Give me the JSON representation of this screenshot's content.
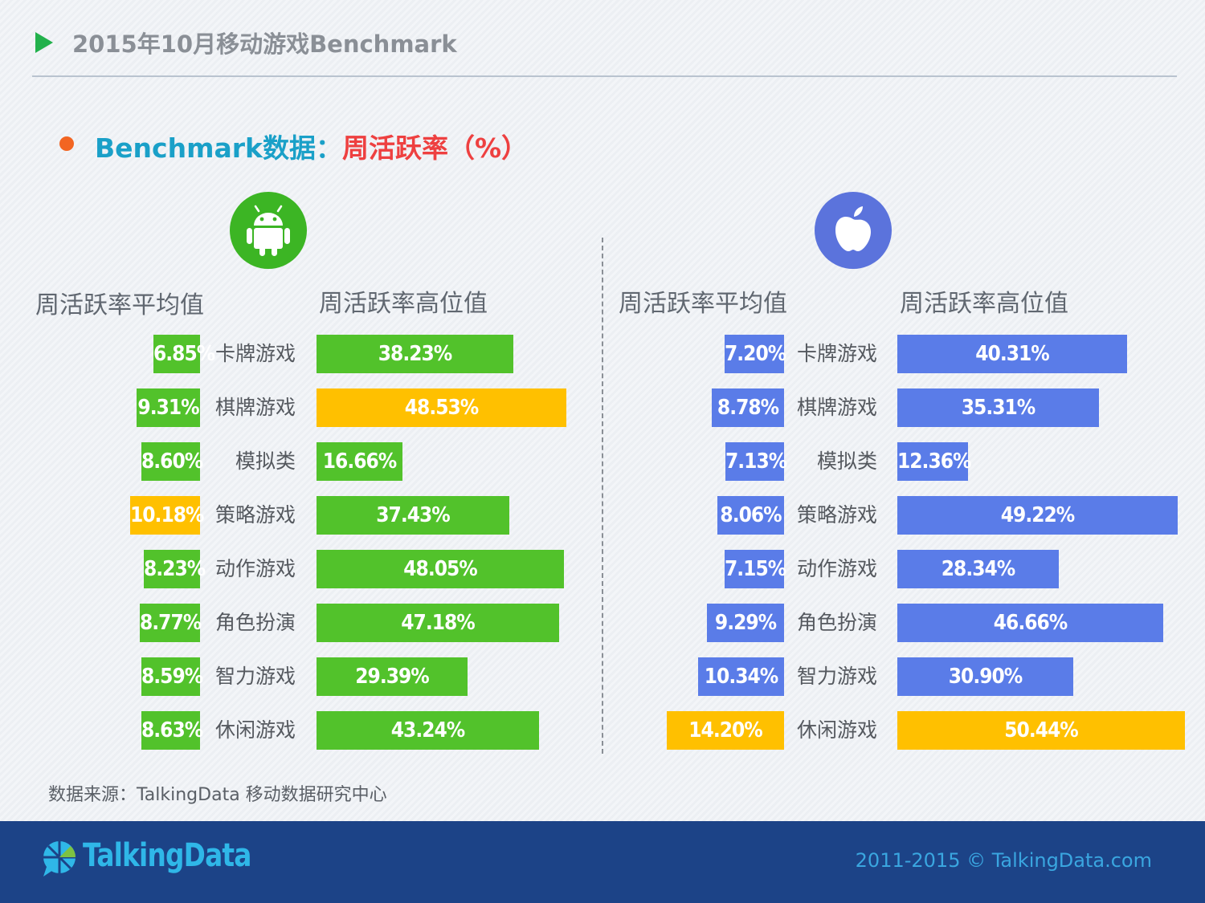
{
  "header": {
    "title": "2015年10月移动游戏Benchmark"
  },
  "subtitle": {
    "part_a": "Benchmark数据：",
    "part_b": "周活跃率（%）"
  },
  "colors": {
    "green": "#52c22b",
    "yellow": "#ffc000",
    "blue": "#5a7ce8",
    "footer": "#1c4387"
  },
  "icons": {
    "android": "android-icon",
    "apple": "apple-icon"
  },
  "chart_data": [
    {
      "type": "bar",
      "platform": "android",
      "categories": [
        "卡牌游戏",
        "棋牌游戏",
        "模拟类",
        "策略游戏",
        "动作游戏",
        "角色扮演",
        "智力游戏",
        "休闲游戏"
      ],
      "series": [
        {
          "name": "周活跃率平均值",
          "labels": [
            "6.85%",
            "9.31%",
            "8.60%",
            "10.18%",
            "8.23%",
            "8.77%",
            "8.59%",
            "8.63%"
          ],
          "values": [
            6.85,
            9.31,
            8.6,
            10.18,
            8.23,
            8.77,
            8.59,
            8.63
          ],
          "highlight_index": 3
        },
        {
          "name": "周活跃率高位值",
          "labels": [
            "38.23%",
            "48.53%",
            "16.66%",
            "37.43%",
            "48.05%",
            "47.18%",
            "29.39%",
            "43.24%"
          ],
          "values": [
            38.23,
            48.53,
            16.66,
            37.43,
            48.05,
            47.18,
            29.39,
            43.24
          ],
          "highlight_index": 1
        }
      ]
    },
    {
      "type": "bar",
      "platform": "ios",
      "categories": [
        "卡牌游戏",
        "棋牌游戏",
        "模拟类",
        "策略游戏",
        "动作游戏",
        "角色扮演",
        "智力游戏",
        "休闲游戏"
      ],
      "series": [
        {
          "name": "周活跃率平均值",
          "labels": [
            "7.20%",
            "8.78%",
            "7.13%",
            "8.06%",
            "7.15%",
            "9.29%",
            "10.34%",
            "14.20%"
          ],
          "values": [
            7.2,
            8.78,
            7.13,
            8.06,
            7.15,
            9.29,
            10.34,
            14.2
          ],
          "highlight_index": 7
        },
        {
          "name": "周活跃率高位值",
          "labels": [
            "40.31%",
            "35.31%",
            "12.36%",
            "49.22%",
            "28.34%",
            "46.66%",
            "30.90%",
            "50.44%"
          ],
          "values": [
            40.31,
            35.31,
            12.36,
            49.22,
            28.34,
            46.66,
            30.9,
            50.44
          ],
          "highlight_index": 7
        }
      ]
    }
  ],
  "source": "数据来源：TalkingData 移动数据研究中心",
  "footer": {
    "logo_text": "TalkingData",
    "copyright": "2011-2015 © TalkingData.com"
  }
}
